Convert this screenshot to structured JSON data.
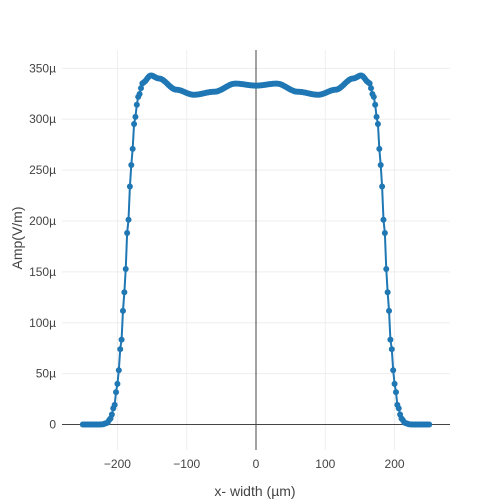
{
  "chart_data": {
    "type": "scatter",
    "mode": "lines+markers",
    "xlabel": "x- width (µm)",
    "ylabel": "Amp(V/m)",
    "xlim": [
      -280,
      280
    ],
    "ylim": [
      -2.5e-05,
      0.000368
    ],
    "x_ticks": [
      {
        "value": -200,
        "label": "−200"
      },
      {
        "value": -100,
        "label": "−100"
      },
      {
        "value": 0,
        "label": "0"
      },
      {
        "value": 100,
        "label": "100"
      },
      {
        "value": 200,
        "label": "200"
      }
    ],
    "y_ticks": [
      {
        "value": 0,
        "label": "0"
      },
      {
        "value": 5e-05,
        "label": "50µ"
      },
      {
        "value": 0.0001,
        "label": "100µ"
      },
      {
        "value": 0.00015,
        "label": "150µ"
      },
      {
        "value": 0.0002,
        "label": "200µ"
      },
      {
        "value": 0.00025,
        "label": "250µ"
      },
      {
        "value": 0.0003,
        "label": "300µ"
      },
      {
        "value": 0.00035,
        "label": "350µ"
      }
    ],
    "grid": true,
    "zero_lines": true,
    "series_color": "#1f77b4",
    "x_range": [
      -250,
      250
    ],
    "point_count": 251,
    "profile_samples": [
      {
        "x": 0,
        "y": 0.000333
      },
      {
        "x": 30,
        "y": 0.000335
      },
      {
        "x": 60,
        "y": 0.000327
      },
      {
        "x": 90,
        "y": 0.000324
      },
      {
        "x": 115,
        "y": 0.000329
      },
      {
        "x": 140,
        "y": 0.00034
      },
      {
        "x": 152,
        "y": 0.000343
      },
      {
        "x": 163,
        "y": 0.000336
      },
      {
        "x": 170,
        "y": 0.000322
      },
      {
        "x": 175,
        "y": 0.0003
      },
      {
        "x": 180,
        "y": 0.000255
      },
      {
        "x": 185,
        "y": 0.000195
      },
      {
        "x": 190,
        "y": 0.00013
      },
      {
        "x": 195,
        "y": 7.8e-05
      },
      {
        "x": 200,
        "y": 4e-05
      },
      {
        "x": 205,
        "y": 1.7e-05
      },
      {
        "x": 210,
        "y": 6e-06
      },
      {
        "x": 215,
        "y": 1.5e-06
      },
      {
        "x": 222,
        "y": 2e-07
      },
      {
        "x": 230,
        "y": 0
      },
      {
        "x": 250,
        "y": 0
      }
    ]
  }
}
